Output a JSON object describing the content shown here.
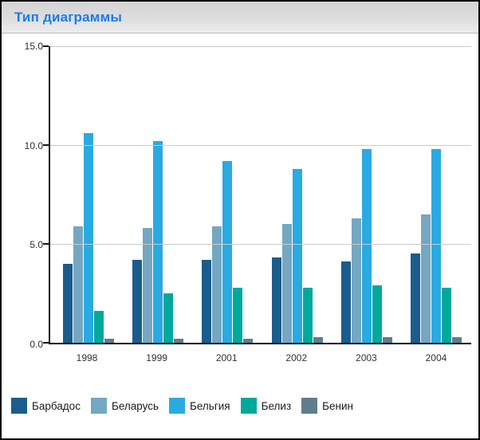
{
  "window": {
    "title": "Тип диаграммы"
  },
  "colors": {
    "title_blue": "#1a7ce8",
    "axis": "#151515",
    "gridline": "#cbcbcb",
    "tick_label": "#2b2b2b"
  },
  "chart_data": {
    "type": "bar",
    "title": "Тип диаграммы",
    "categories": [
      "1998",
      "1999",
      "2001",
      "2002",
      "2003",
      "2004"
    ],
    "series": [
      {
        "name": "Барбадос",
        "color": "#1b5c8c",
        "values": [
          4.0,
          4.2,
          4.2,
          4.3,
          4.1,
          4.5
        ]
      },
      {
        "name": "Беларусь",
        "color": "#74a7c2",
        "values": [
          5.9,
          5.8,
          5.9,
          6.0,
          6.3,
          6.5
        ]
      },
      {
        "name": "Бельгия",
        "color": "#29aae1",
        "values": [
          10.6,
          10.2,
          9.2,
          8.8,
          9.8,
          9.8
        ]
      },
      {
        "name": "Белиз",
        "color": "#00a99c",
        "values": [
          1.6,
          2.5,
          2.8,
          2.8,
          2.9,
          2.8
        ]
      },
      {
        "name": "Бенин",
        "color": "#5f7d8c",
        "values": [
          0.2,
          0.2,
          0.2,
          0.3,
          0.3,
          0.3
        ]
      }
    ],
    "xlabel": "",
    "ylabel": "",
    "ylim": [
      0,
      15
    ],
    "yticks": [
      {
        "label": "0.0",
        "value": 0
      },
      {
        "label": "5.0",
        "value": 5
      },
      {
        "label": "10.0",
        "value": 10
      },
      {
        "label": "15.0",
        "value": 15
      }
    ],
    "grid": true,
    "legend_position": "bottom"
  }
}
